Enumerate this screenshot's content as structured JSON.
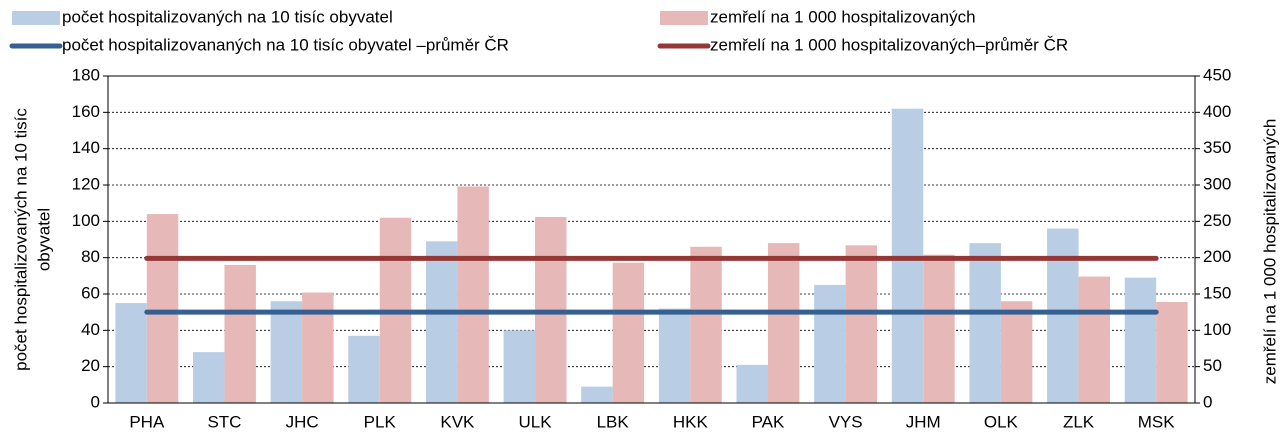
{
  "chart_data": {
    "type": "bar",
    "categories": [
      "PHA",
      "STC",
      "JHC",
      "PLK",
      "KVK",
      "ULK",
      "LBK",
      "HKK",
      "PAK",
      "VYS",
      "JHM",
      "OLK",
      "ZLK",
      "MSK"
    ],
    "series": [
      {
        "name": "počet hospitalizovaných na 10 tisíc obyvatel",
        "type": "bar",
        "color": "#b9cde5",
        "values": [
          55,
          28,
          56,
          37,
          89,
          40,
          9,
          52,
          21,
          65,
          162,
          88,
          96,
          69
        ]
      },
      {
        "name": "zemřelí na 1 000 hospitalizovaných",
        "type": "bar",
        "axis": "y2",
        "color": "#e6b9b8",
        "values": [
          260,
          190,
          152,
          255,
          298,
          256,
          193,
          215,
          220,
          217,
          204,
          140,
          174,
          139
        ]
      },
      {
        "name": "počet hospitalizovananých na 10 tisíc obyvatel –průměr ČR",
        "type": "line",
        "color": "#376092",
        "values": [
          50,
          50,
          50,
          50,
          50,
          50,
          50,
          50,
          50,
          50,
          50,
          50,
          50,
          50
        ]
      },
      {
        "name": "zemřelí na 1 000 hospitalizovaných–průměr ČR",
        "type": "line",
        "axis": "y2",
        "color": "#953735",
        "values": [
          199,
          199,
          199,
          199,
          199,
          199,
          199,
          199,
          199,
          199,
          199,
          199,
          199,
          199
        ]
      }
    ],
    "ylabel_lines": [
      "počet hospitalizovaných na 10 tisíc",
      "obyvatel"
    ],
    "y2label": "zemřelí na 1 000 hospitalizovaných",
    "ylim": [
      0,
      180
    ],
    "yticks": [
      0,
      20,
      40,
      60,
      80,
      100,
      120,
      140,
      160,
      180
    ],
    "y2lim": [
      0,
      450
    ],
    "y2ticks": [
      0,
      50,
      100,
      150,
      200,
      250,
      300,
      350,
      400,
      450
    ],
    "grid": true
  }
}
